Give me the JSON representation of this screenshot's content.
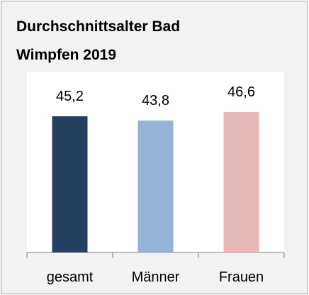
{
  "chart_data": {
    "type": "bar",
    "title": "Durchschnittsalter Bad Wimpfen 2019",
    "categories": [
      "gesamt",
      "Männer",
      "Frauen"
    ],
    "values": [
      45.2,
      43.8,
      46.6
    ],
    "value_labels": [
      "45,2",
      "43,8",
      "46,6"
    ],
    "colors": [
      "#243f60",
      "#95b3d7",
      "#e6b9b8"
    ],
    "ylim": [
      0,
      60
    ]
  }
}
